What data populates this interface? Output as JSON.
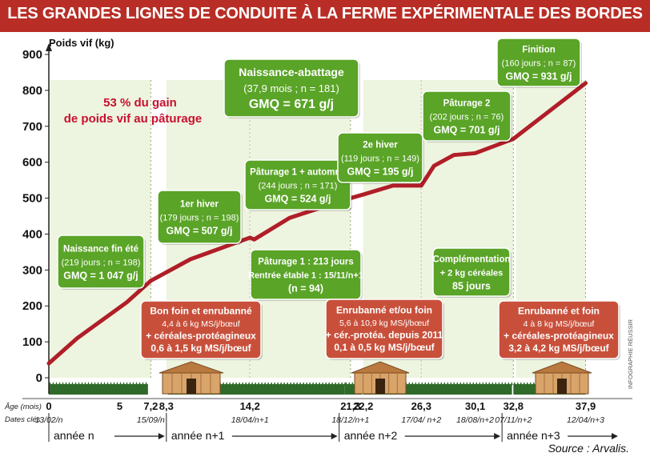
{
  "title": "LES GRANDES LIGNES DE CONDUITE À LA FERME EXPÉRIMENTALE DES BORDES",
  "colors": {
    "title_bg": "#b82d25",
    "line": "#b01e28",
    "green_box": "#5aa427",
    "red_box": "#c8503b",
    "highlight_red": "#c8102e",
    "period_shade": "#e9f1d7",
    "grass": "#2f6a2a",
    "barn_roof": "#b9793f"
  },
  "source": "Source : Arvalis.",
  "credit": "INFOGRAPHIE RÉUSSIR",
  "highlight": {
    "line1": "53 % du gain",
    "line2": "de poids vif au pâturage"
  },
  "row_labels": {
    "age": "Âge (mois)",
    "dates": "Dates clés"
  },
  "chart_data": {
    "type": "line",
    "ylabel": "Poids vif (kg)",
    "ylim": [
      0,
      900
    ],
    "yticks": [
      0,
      100,
      200,
      300,
      400,
      500,
      600,
      700,
      800,
      900
    ],
    "xlim": [
      0,
      40.3
    ],
    "x": [
      0,
      2,
      5.5,
      7.2,
      10,
      14.2,
      14.5,
      17,
      21.3,
      22.2,
      24.3,
      26.3,
      27.2,
      28.6,
      30.1,
      32.8,
      37.9
    ],
    "y": [
      40,
      110,
      210,
      270,
      330,
      390,
      385,
      445,
      500,
      510,
      535,
      535,
      590,
      620,
      625,
      665,
      820
    ],
    "x_tick_labels": [
      {
        "x": 0,
        "label": "0"
      },
      {
        "x": 5,
        "label": "5"
      },
      {
        "x": 7.2,
        "label": "7,2"
      },
      {
        "x": 8.3,
        "label": "8,3"
      },
      {
        "x": 14.2,
        "label": "14,2"
      },
      {
        "x": 21.3,
        "label": "21,3"
      },
      {
        "x": 22.2,
        "label": "22,2"
      },
      {
        "x": 26.3,
        "label": "26,3"
      },
      {
        "x": 30.1,
        "label": "30,1"
      },
      {
        "x": 32.8,
        "label": "32,8"
      },
      {
        "x": 37.9,
        "label": "37,9"
      }
    ],
    "dates": [
      {
        "x": 0,
        "label": "13/02/n"
      },
      {
        "x": 7.2,
        "label": "15/09/n"
      },
      {
        "x": 14.2,
        "label": "18/04/n+1"
      },
      {
        "x": 21.3,
        "label": "18/12/n+1"
      },
      {
        "x": 26.3,
        "label": "17/04/ n+2"
      },
      {
        "x": 30.1,
        "label": "18/08/n+2"
      },
      {
        "x": 32.8,
        "label": "07/11/n+2"
      },
      {
        "x": 37.9,
        "label": "12/04/n+3"
      }
    ],
    "years": [
      {
        "label": "année n",
        "x_start": 0,
        "x_end": 8.3
      },
      {
        "label": "année n+1",
        "x_start": 8.3,
        "x_end": 20.5
      },
      {
        "label": "année n+2",
        "x_start": 20.5,
        "x_end": 32.0
      },
      {
        "label": "année n+3",
        "x_start": 32.0,
        "x_end": 40.3
      }
    ],
    "periods": [
      {
        "x_start": 0,
        "x_end": 7.2,
        "kind": "pasture"
      },
      {
        "x_start": 8.3,
        "x_end": 14.2,
        "kind": "winter"
      },
      {
        "x_start": 14.2,
        "x_end": 21.3,
        "kind": "pasture"
      },
      {
        "x_start": 22.2,
        "x_end": 26.3,
        "kind": "winter"
      },
      {
        "x_start": 26.3,
        "x_end": 32.8,
        "kind": "pasture"
      },
      {
        "x_start": 33.0,
        "x_end": 37.9,
        "kind": "finish"
      }
    ],
    "annotations": [
      {
        "id": "naissance",
        "style": "green",
        "lines": [
          "Naissance fin été",
          "(219 jours ; n = 198)",
          "GMQ = 1 047 g/j"
        ]
      },
      {
        "id": "hiver1",
        "style": "green",
        "lines": [
          "1er hiver",
          "(179 jours ; n = 198)",
          "GMQ = 507 g/j"
        ]
      },
      {
        "id": "paturage1",
        "style": "green",
        "lines": [
          "Pâturage 1 + automne",
          "(244 jours ; n = 171)",
          "GMQ = 524 g/j"
        ]
      },
      {
        "id": "hiver2",
        "style": "green",
        "lines": [
          "2e hiver",
          "(119 jours ; n = 149)",
          "GMQ = 195 g/j"
        ]
      },
      {
        "id": "paturage2",
        "style": "green",
        "lines": [
          "Pâturage 2",
          "(202 jours ; n = 76)",
          "GMQ = 701 g/j"
        ]
      },
      {
        "id": "finition",
        "style": "green",
        "lines": [
          "Finition",
          "(160 jours ; n = 87)",
          "GMQ = 931 g/j"
        ]
      },
      {
        "id": "total",
        "style": "green",
        "lines": [
          "Naissance-abattage",
          "(37,9 mois ; n = 181)",
          "GMQ = 671 g/j"
        ]
      },
      {
        "id": "rentree",
        "style": "green",
        "lines": [
          "Pâturage 1 : 213 jours",
          "Rentrée étable 1 : 15/11/n+1",
          "(n = 94)"
        ]
      },
      {
        "id": "complementation",
        "style": "green",
        "lines": [
          "Complémentation",
          "+ 2 kg céréales",
          "85 jours"
        ]
      },
      {
        "id": "foin1",
        "style": "red",
        "lines": [
          "Bon foin et enrubanné",
          "4,4 à 6 kg MS/j/bœuf",
          "+ céréales-protéagineux",
          "0,6 à 1,5 kg MS/j/bœuf"
        ]
      },
      {
        "id": "foin2",
        "style": "red",
        "lines": [
          "Enrubanné et/ou foin",
          "5,6 à 10,9 kg MS/j/bœuf",
          "+ cér.-protéa. depuis 2011",
          "0,1 à 0,5 kg MS/j/bœuf"
        ]
      },
      {
        "id": "foin3",
        "style": "red",
        "lines": [
          "Enrubanné et foin",
          "4 à 8 kg MS/j/bœuf",
          "+ céréales-protéagineux",
          "3,2 à 4,2 kg MS/j/bœuf"
        ]
      }
    ]
  }
}
